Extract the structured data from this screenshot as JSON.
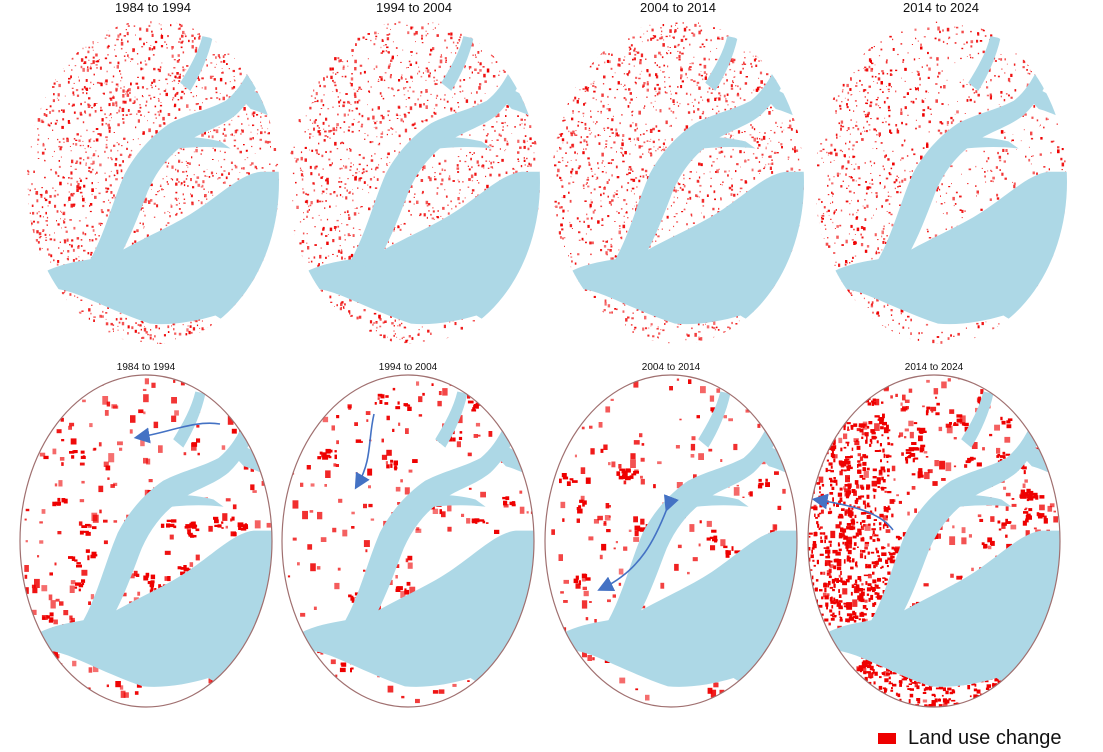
{
  "top_row": {
    "panels": [
      {
        "title": "1984 to 1994"
      },
      {
        "title": "1994 to 2004"
      },
      {
        "title": "2004 to 2014"
      },
      {
        "title": "2014 to 2024"
      }
    ]
  },
  "bottom_row": {
    "panels": [
      {
        "title": "1984 to 1994"
      },
      {
        "title": "1994 to 2004"
      },
      {
        "title": "2004 to 2014"
      },
      {
        "title": "2014 to 2024"
      }
    ]
  },
  "legend": {
    "label": "Land use change",
    "color": "#ee0000"
  },
  "colors": {
    "water": "#add8e6",
    "change": "#ee0000",
    "arrow": "#4472c4",
    "outline": "#a07070"
  }
}
